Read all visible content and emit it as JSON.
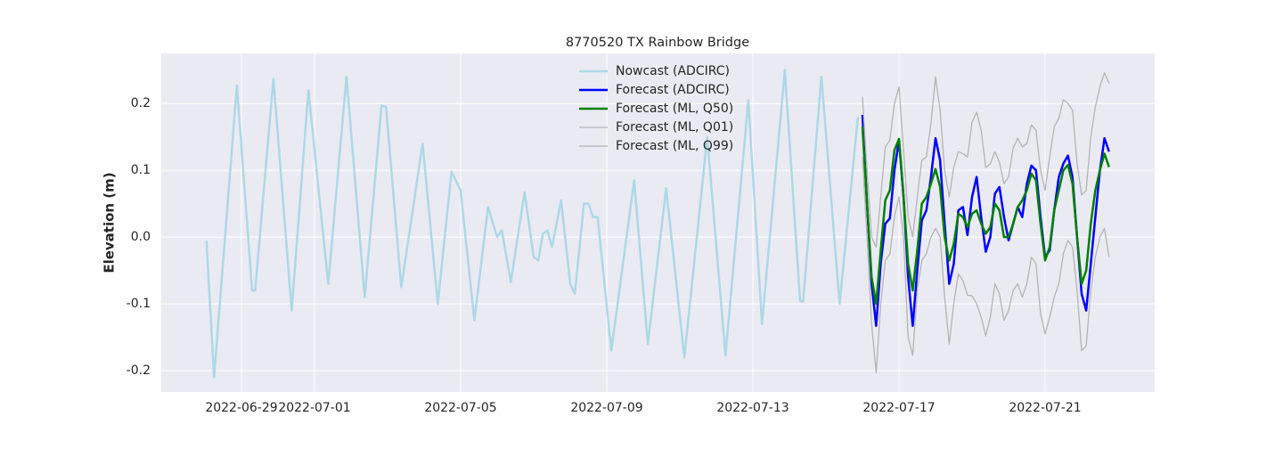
{
  "chart_data": {
    "type": "line",
    "title": "8770520 TX Rainbow Bridge",
    "ylabel": "Elevation (m)",
    "xlim": [
      "2022-06-26T19:19",
      "2022-07-24T00:00"
    ],
    "xticks": [
      "2022-06-29",
      "2022-07-01",
      "2022-07-05",
      "2022-07-09",
      "2022-07-13",
      "2022-07-17",
      "2022-07-21"
    ],
    "ylim": [
      -0.232,
      0.275
    ],
    "yticks": [
      -0.2,
      -0.1,
      {
        "value": 0,
        "label": "0.0"
      },
      0.1,
      0.2
    ],
    "grid": true,
    "legend": "upper center",
    "series": [
      {
        "name": "Nowcast (ADCIRC)",
        "color": "#add8e6",
        "width": 2.5,
        "x": [
          "2022-06-28T01:00",
          "2022-06-28T06:00",
          "2022-06-28T21:00",
          "2022-06-29T07:00",
          "2022-06-29T09:00",
          "2022-06-29T21:00",
          "2022-06-30T09:00",
          "2022-06-30T20:00",
          "2022-07-01T09:00",
          "2022-07-01T21:00",
          "2022-07-02T09:00",
          "2022-07-02T20:00",
          "2022-07-02T23:00",
          "2022-07-03T09:00",
          "2022-07-03T23:00",
          "2022-07-04T09:00",
          "2022-07-04T18:00",
          "2022-07-05T00:00",
          "2022-07-05T09:00",
          "2022-07-05T18:00",
          "2022-07-06T00:00",
          "2022-07-06T03:00",
          "2022-07-06T09:00",
          "2022-07-06T18:00",
          "2022-07-07T00:00",
          "2022-07-07T03:00",
          "2022-07-07T06:00",
          "2022-07-07T09:00",
          "2022-07-07T12:00",
          "2022-07-07T18:00",
          "2022-07-08T00:00",
          "2022-07-08T03:00",
          "2022-07-08T09:00",
          "2022-07-08T12:00",
          "2022-07-08T15:00",
          "2022-07-08T18:00",
          "2022-07-09T03:00",
          "2022-07-09T18:00",
          "2022-07-10T03:00",
          "2022-07-10T15:00",
          "2022-07-11T03:00",
          "2022-07-11T18:00",
          "2022-07-12T06:00",
          "2022-07-12T21:00",
          "2022-07-13T06:00",
          "2022-07-13T21:00",
          "2022-07-14T07:00",
          "2022-07-14T09:00",
          "2022-07-14T21:00",
          "2022-07-15T09:00",
          "2022-07-15T21:00"
        ],
        "values": [
          -0.005,
          -0.21,
          0.227,
          -0.08,
          -0.08,
          0.237,
          -0.11,
          0.22,
          -0.07,
          0.24,
          -0.09,
          0.197,
          0.195,
          -0.075,
          0.14,
          -0.1,
          0.098,
          0.07,
          -0.125,
          0.045,
          0.0,
          0.01,
          -0.067,
          0.067,
          -0.03,
          -0.035,
          0.005,
          0.01,
          -0.015,
          0.055,
          -0.07,
          -0.085,
          0.05,
          0.05,
          0.03,
          0.03,
          -0.17,
          0.085,
          -0.16,
          0.073,
          -0.18,
          0.15,
          -0.177,
          0.205,
          -0.13,
          0.25,
          -0.095,
          -0.097,
          0.24,
          -0.1,
          0.18
        ]
      },
      {
        "name": "Forecast (ADCIRC)",
        "color": "#0000ff",
        "width": 2.5,
        "x": [
          "2022-07-16T00:00",
          "2022-07-16T03:00",
          "2022-07-16T06:00",
          "2022-07-16T09:00",
          "2022-07-16T12:00",
          "2022-07-16T15:00",
          "2022-07-16T18:00",
          "2022-07-16T21:00",
          "2022-07-17T00:00",
          "2022-07-17T03:00",
          "2022-07-17T06:00",
          "2022-07-17T09:00",
          "2022-07-17T12:00",
          "2022-07-17T15:00",
          "2022-07-17T18:00",
          "2022-07-17T21:00",
          "2022-07-18T00:00",
          "2022-07-18T03:00",
          "2022-07-18T06:00",
          "2022-07-18T09:00",
          "2022-07-18T12:00",
          "2022-07-18T15:00",
          "2022-07-18T18:00",
          "2022-07-18T21:00",
          "2022-07-19T00:00",
          "2022-07-19T03:00",
          "2022-07-19T06:00",
          "2022-07-19T09:00",
          "2022-07-19T12:00",
          "2022-07-19T15:00",
          "2022-07-19T18:00",
          "2022-07-19T21:00",
          "2022-07-20T00:00",
          "2022-07-20T03:00",
          "2022-07-20T06:00",
          "2022-07-20T09:00",
          "2022-07-20T12:00",
          "2022-07-20T15:00",
          "2022-07-20T18:00",
          "2022-07-20T21:00",
          "2022-07-21T00:00",
          "2022-07-21T03:00",
          "2022-07-21T06:00",
          "2022-07-21T09:00",
          "2022-07-21T12:00",
          "2022-07-21T15:00",
          "2022-07-21T18:00",
          "2022-07-21T21:00",
          "2022-07-22T00:00",
          "2022-07-22T03:00",
          "2022-07-22T06:00",
          "2022-07-22T09:00",
          "2022-07-22T12:00",
          "2022-07-22T15:00",
          "2022-07-22T18:00"
        ],
        "values": [
          0.183,
          0.05,
          -0.07,
          -0.133,
          -0.04,
          0.02,
          0.028,
          0.1,
          0.145,
          0.06,
          -0.06,
          -0.133,
          -0.05,
          0.025,
          0.04,
          0.09,
          0.148,
          0.115,
          0.02,
          -0.07,
          -0.04,
          0.04,
          0.045,
          0.003,
          0.06,
          0.09,
          0.03,
          -0.022,
          0.0,
          0.065,
          0.075,
          0.03,
          -0.005,
          0.02,
          0.045,
          0.03,
          0.08,
          0.107,
          0.1,
          0.03,
          -0.03,
          -0.02,
          0.04,
          0.09,
          0.11,
          0.122,
          0.09,
          0.0,
          -0.085,
          -0.11,
          -0.04,
          0.03,
          0.1,
          0.148,
          0.128
        ]
      },
      {
        "name": "Forecast (ML, Q50)",
        "color": "#008000",
        "width": 2.5,
        "x": [
          "2022-07-16T00:00",
          "2022-07-16T03:00",
          "2022-07-16T06:00",
          "2022-07-16T09:00",
          "2022-07-16T12:00",
          "2022-07-16T15:00",
          "2022-07-16T18:00",
          "2022-07-16T21:00",
          "2022-07-17T00:00",
          "2022-07-17T03:00",
          "2022-07-17T06:00",
          "2022-07-17T09:00",
          "2022-07-17T12:00",
          "2022-07-17T15:00",
          "2022-07-17T18:00",
          "2022-07-17T21:00",
          "2022-07-18T00:00",
          "2022-07-18T03:00",
          "2022-07-18T06:00",
          "2022-07-18T09:00",
          "2022-07-18T12:00",
          "2022-07-18T15:00",
          "2022-07-18T18:00",
          "2022-07-18T21:00",
          "2022-07-19T00:00",
          "2022-07-19T03:00",
          "2022-07-19T06:00",
          "2022-07-19T09:00",
          "2022-07-19T12:00",
          "2022-07-19T15:00",
          "2022-07-19T18:00",
          "2022-07-19T21:00",
          "2022-07-20T00:00",
          "2022-07-20T03:00",
          "2022-07-20T06:00",
          "2022-07-20T09:00",
          "2022-07-20T12:00",
          "2022-07-20T15:00",
          "2022-07-20T18:00",
          "2022-07-20T21:00",
          "2022-07-21T00:00",
          "2022-07-21T03:00",
          "2022-07-21T06:00",
          "2022-07-21T09:00",
          "2022-07-21T12:00",
          "2022-07-21T15:00",
          "2022-07-21T18:00",
          "2022-07-21T21:00",
          "2022-07-22T00:00",
          "2022-07-22T03:00",
          "2022-07-22T06:00",
          "2022-07-22T09:00",
          "2022-07-22T12:00",
          "2022-07-22T15:00",
          "2022-07-22T18:00"
        ],
        "values": [
          0.165,
          0.05,
          -0.06,
          -0.1,
          -0.02,
          0.055,
          0.07,
          0.13,
          0.147,
          0.06,
          -0.04,
          -0.08,
          -0.02,
          0.05,
          0.06,
          0.08,
          0.102,
          0.075,
          0.0,
          -0.035,
          -0.01,
          0.035,
          0.03,
          0.015,
          0.035,
          0.04,
          0.02,
          0.005,
          0.015,
          0.05,
          0.04,
          0.0,
          0.0,
          0.02,
          0.045,
          0.055,
          0.07,
          0.095,
          0.085,
          0.02,
          -0.035,
          -0.015,
          0.04,
          0.07,
          0.1,
          0.108,
          0.08,
          0.0,
          -0.07,
          -0.05,
          0.02,
          0.07,
          0.1,
          0.125,
          0.105
        ]
      },
      {
        "name": "Forecast (ML, Q01)",
        "color": "#b4b4b4",
        "width": 1.3,
        "x": [
          "2022-07-16T00:00",
          "2022-07-16T03:00",
          "2022-07-16T06:00",
          "2022-07-16T09:00",
          "2022-07-16T12:00",
          "2022-07-16T15:00",
          "2022-07-16T18:00",
          "2022-07-16T21:00",
          "2022-07-17T00:00",
          "2022-07-17T03:00",
          "2022-07-17T06:00",
          "2022-07-17T09:00",
          "2022-07-17T12:00",
          "2022-07-17T15:00",
          "2022-07-17T18:00",
          "2022-07-17T21:00",
          "2022-07-18T00:00",
          "2022-07-18T03:00",
          "2022-07-18T06:00",
          "2022-07-18T09:00",
          "2022-07-18T12:00",
          "2022-07-18T15:00",
          "2022-07-18T18:00",
          "2022-07-18T21:00",
          "2022-07-19T00:00",
          "2022-07-19T03:00",
          "2022-07-19T06:00",
          "2022-07-19T09:00",
          "2022-07-19T12:00",
          "2022-07-19T15:00",
          "2022-07-19T18:00",
          "2022-07-19T21:00",
          "2022-07-20T00:00",
          "2022-07-20T03:00",
          "2022-07-20T06:00",
          "2022-07-20T09:00",
          "2022-07-20T12:00",
          "2022-07-20T15:00",
          "2022-07-20T18:00",
          "2022-07-20T21:00",
          "2022-07-21T00:00",
          "2022-07-21T03:00",
          "2022-07-21T06:00",
          "2022-07-21T09:00",
          "2022-07-21T12:00",
          "2022-07-21T15:00",
          "2022-07-21T18:00",
          "2022-07-21T21:00",
          "2022-07-22T00:00",
          "2022-07-22T03:00",
          "2022-07-22T06:00",
          "2022-07-22T09:00",
          "2022-07-22T12:00",
          "2022-07-22T15:00",
          "2022-07-22T18:00"
        ],
        "values": [
          0.12,
          0.0,
          -0.13,
          -0.203,
          -0.1,
          -0.035,
          -0.025,
          0.03,
          0.06,
          0.0,
          -0.15,
          -0.177,
          -0.08,
          -0.035,
          -0.025,
          0.0,
          0.013,
          0.0,
          -0.09,
          -0.16,
          -0.1,
          -0.055,
          -0.065,
          -0.087,
          -0.088,
          -0.1,
          -0.12,
          -0.148,
          -0.12,
          -0.07,
          -0.085,
          -0.125,
          -0.11,
          -0.08,
          -0.07,
          -0.09,
          -0.07,
          -0.03,
          -0.04,
          -0.115,
          -0.145,
          -0.12,
          -0.09,
          -0.07,
          -0.025,
          -0.005,
          -0.015,
          -0.08,
          -0.17,
          -0.163,
          -0.08,
          -0.03,
          0.0,
          0.013,
          -0.03
        ]
      },
      {
        "name": "Forecast (ML, Q99)",
        "color": "#b4b4b4",
        "width": 1.3,
        "x": [
          "2022-07-16T00:00",
          "2022-07-16T03:00",
          "2022-07-16T06:00",
          "2022-07-16T09:00",
          "2022-07-16T12:00",
          "2022-07-16T15:00",
          "2022-07-16T18:00",
          "2022-07-16T21:00",
          "2022-07-17T00:00",
          "2022-07-17T03:00",
          "2022-07-17T06:00",
          "2022-07-17T09:00",
          "2022-07-17T12:00",
          "2022-07-17T15:00",
          "2022-07-17T18:00",
          "2022-07-17T21:00",
          "2022-07-18T00:00",
          "2022-07-18T03:00",
          "2022-07-18T06:00",
          "2022-07-18T09:00",
          "2022-07-18T12:00",
          "2022-07-18T15:00",
          "2022-07-18T18:00",
          "2022-07-18T21:00",
          "2022-07-19T00:00",
          "2022-07-19T03:00",
          "2022-07-19T06:00",
          "2022-07-19T09:00",
          "2022-07-19T12:00",
          "2022-07-19T15:00",
          "2022-07-19T18:00",
          "2022-07-19T21:00",
          "2022-07-20T00:00",
          "2022-07-20T03:00",
          "2022-07-20T06:00",
          "2022-07-20T09:00",
          "2022-07-20T12:00",
          "2022-07-20T15:00",
          "2022-07-20T18:00",
          "2022-07-20T21:00",
          "2022-07-21T00:00",
          "2022-07-21T03:00",
          "2022-07-21T06:00",
          "2022-07-21T09:00",
          "2022-07-21T12:00",
          "2022-07-21T15:00",
          "2022-07-21T18:00",
          "2022-07-21T21:00",
          "2022-07-22T00:00",
          "2022-07-22T03:00",
          "2022-07-22T06:00",
          "2022-07-22T09:00",
          "2022-07-22T12:00",
          "2022-07-22T15:00",
          "2022-07-22T18:00"
        ],
        "values": [
          0.21,
          0.1,
          0.0,
          -0.015,
          0.06,
          0.135,
          0.145,
          0.2,
          0.225,
          0.13,
          0.03,
          0.0,
          0.06,
          0.115,
          0.12,
          0.17,
          0.24,
          0.19,
          0.1,
          0.06,
          0.105,
          0.128,
          0.125,
          0.12,
          0.172,
          0.187,
          0.16,
          0.104,
          0.11,
          0.128,
          0.112,
          0.08,
          0.09,
          0.133,
          0.148,
          0.135,
          0.14,
          0.168,
          0.16,
          0.1,
          0.07,
          0.12,
          0.165,
          0.178,
          0.206,
          0.2,
          0.19,
          0.11,
          0.063,
          0.07,
          0.15,
          0.195,
          0.225,
          0.246,
          0.23
        ]
      }
    ]
  }
}
